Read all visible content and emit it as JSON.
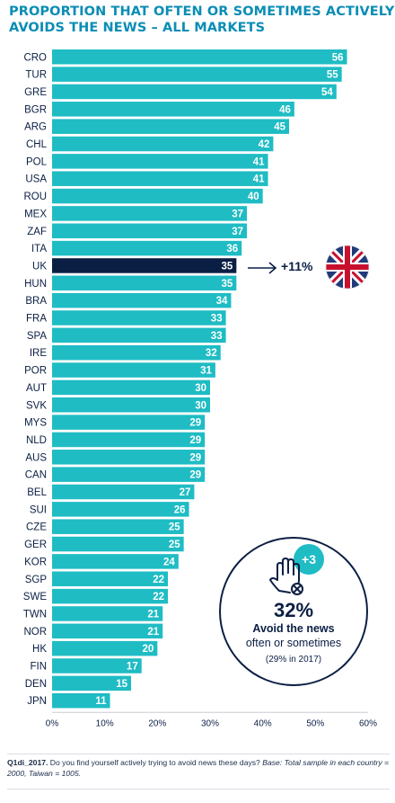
{
  "title": {
    "line1": "PROPORTION THAT OFTEN OR SOMETIMES ACTIVELY",
    "line2": "AVOIDS THE NEWS – ALL MARKETS"
  },
  "chart_data": {
    "type": "bar",
    "orientation": "horizontal",
    "title": "PROPORTION THAT OFTEN OR SOMETIMES ACTIVELY AVOIDS THE NEWS – ALL MARKETS",
    "categories": [
      "CRO",
      "TUR",
      "GRE",
      "BGR",
      "ARG",
      "CHL",
      "POL",
      "USA",
      "ROU",
      "MEX",
      "ZAF",
      "ITA",
      "UK",
      "HUN",
      "BRA",
      "FRA",
      "SPA",
      "IRE",
      "POR",
      "AUT",
      "SVK",
      "MYS",
      "NLD",
      "AUS",
      "CAN",
      "BEL",
      "SUI",
      "CZE",
      "GER",
      "KOR",
      "SGP",
      "SWE",
      "TWN",
      "NOR",
      "HK",
      "FIN",
      "DEN",
      "JPN"
    ],
    "values": [
      56,
      55,
      54,
      46,
      45,
      42,
      41,
      41,
      40,
      37,
      37,
      36,
      35,
      35,
      34,
      33,
      33,
      32,
      31,
      30,
      30,
      29,
      29,
      29,
      29,
      27,
      26,
      25,
      25,
      24,
      22,
      22,
      21,
      21,
      20,
      17,
      15,
      11
    ],
    "highlight": "UK",
    "xlim": [
      0,
      60
    ],
    "xticks": [
      "0%",
      "10%",
      "20%",
      "30%",
      "40%",
      "50%",
      "60%"
    ],
    "colors": {
      "bar": "#1fbcc4",
      "highlight": "#0b1f44",
      "title": "#0a8db5"
    }
  },
  "uk_annotation": {
    "change": "+11%",
    "flag_icon": "uk-flag-icon"
  },
  "callout": {
    "badge": "+3",
    "icon": "hand-avoid-icon",
    "percent": "32%",
    "label_bold": "Avoid the news",
    "label": "often or sometimes",
    "previous": "(29% in 2017)"
  },
  "footnote": {
    "code": "Q1di_2017.",
    "question": " Do you find yourself actively trying to avoid news these days? ",
    "base": "Base: Total sample in each country = 2000, Taiwan = 1005."
  }
}
